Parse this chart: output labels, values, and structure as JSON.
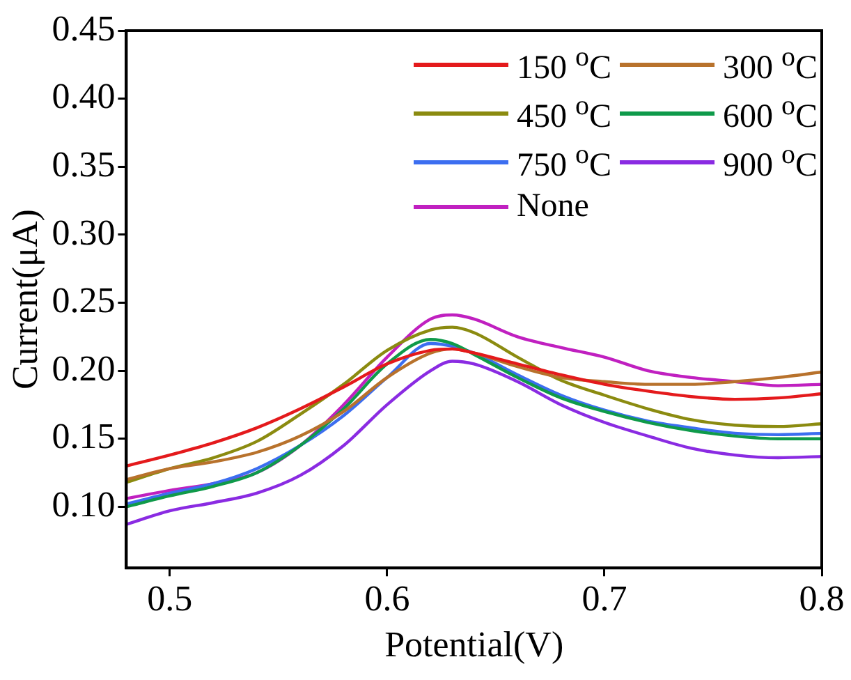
{
  "chart_data": {
    "type": "line",
    "xlabel": "Potential(V)",
    "ylabel": "Current(μA)",
    "x": [
      0.48,
      0.5,
      0.52,
      0.54,
      0.56,
      0.58,
      0.6,
      0.62,
      0.63,
      0.64,
      0.66,
      0.68,
      0.7,
      0.72,
      0.74,
      0.76,
      0.78,
      0.8
    ],
    "series": [
      {
        "name": "150 $^{o}$C",
        "color": "#e41a1c",
        "values": [
          0.13,
          0.138,
          0.147,
          0.158,
          0.172,
          0.188,
          0.205,
          0.215,
          0.216,
          0.213,
          0.205,
          0.197,
          0.19,
          0.185,
          0.181,
          0.179,
          0.18,
          0.183
        ]
      },
      {
        "name": "300 $^{o}$C",
        "color": "#b8722c",
        "values": [
          0.12,
          0.128,
          0.133,
          0.14,
          0.152,
          0.17,
          0.195,
          0.213,
          0.216,
          0.213,
          0.203,
          0.195,
          0.192,
          0.19,
          0.19,
          0.192,
          0.195,
          0.199
        ]
      },
      {
        "name": "450 $^{o}$C",
        "color": "#8b8b10",
        "values": [
          0.118,
          0.128,
          0.136,
          0.148,
          0.168,
          0.19,
          0.215,
          0.23,
          0.232,
          0.228,
          0.21,
          0.193,
          0.182,
          0.172,
          0.164,
          0.16,
          0.159,
          0.161
        ]
      },
      {
        "name": "600 $^{o}$C",
        "color": "#0f9a4a",
        "values": [
          0.1,
          0.108,
          0.115,
          0.125,
          0.145,
          0.172,
          0.205,
          0.223,
          0.22,
          0.212,
          0.195,
          0.18,
          0.17,
          0.162,
          0.156,
          0.152,
          0.15,
          0.15
        ]
      },
      {
        "name": "750 $^{o}$C",
        "color": "#3c6ef0",
        "values": [
          0.102,
          0.11,
          0.117,
          0.128,
          0.145,
          0.167,
          0.195,
          0.22,
          0.218,
          0.213,
          0.197,
          0.182,
          0.171,
          0.163,
          0.158,
          0.154,
          0.153,
          0.154
        ]
      },
      {
        "name": "900 $^{o}$C",
        "color": "#8a2be2",
        "values": [
          0.087,
          0.097,
          0.103,
          0.11,
          0.123,
          0.145,
          0.175,
          0.2,
          0.207,
          0.205,
          0.192,
          0.175,
          0.162,
          0.152,
          0.143,
          0.138,
          0.136,
          0.137
        ]
      },
      {
        "name": "None",
        "color": "#c020c0",
        "values": [
          0.106,
          0.112,
          0.117,
          0.125,
          0.145,
          0.175,
          0.21,
          0.238,
          0.241,
          0.238,
          0.225,
          0.217,
          0.21,
          0.2,
          0.195,
          0.192,
          0.189,
          0.19
        ]
      }
    ],
    "xlim": [
      0.48,
      0.8
    ],
    "xticks": [
      0.5,
      0.6,
      0.7,
      0.8
    ],
    "ylim": [
      0.055,
      0.45
    ],
    "yticks": [
      {
        "value": 0.1,
        "label": "0.10"
      },
      {
        "value": 0.15,
        "label": "0.15"
      },
      {
        "value": 0.2,
        "label": "0.20"
      },
      {
        "value": 0.25,
        "label": "0.25"
      },
      {
        "value": 0.3,
        "label": "0.30"
      },
      {
        "value": 0.35,
        "label": "0.35"
      },
      {
        "value": 0.4,
        "label": "0.40"
      },
      {
        "value": 0.45,
        "label": "0.45"
      }
    ],
    "grid": false,
    "legend": "top right",
    "marker": "none",
    "line_style": "solid"
  }
}
